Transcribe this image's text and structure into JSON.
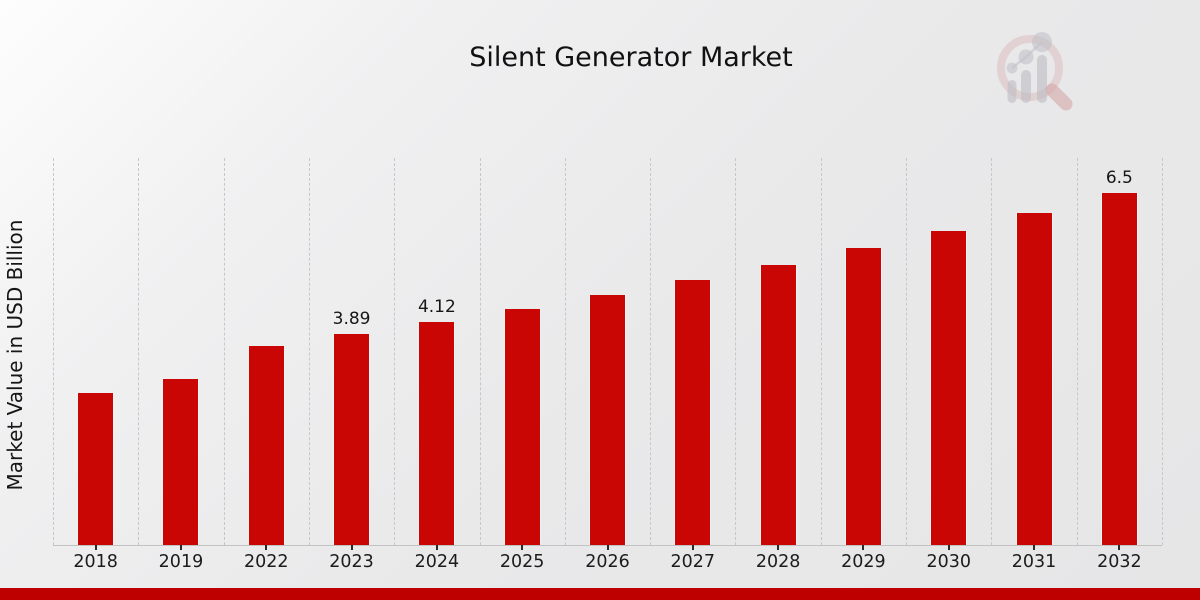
{
  "header": {
    "title": "Silent Generator Market"
  },
  "y_axis": {
    "label": "Market Value in USD Billion"
  },
  "logo": {
    "icon": "magnifier-bar-chart-watermark"
  },
  "footer": {
    "stripe_color": "#bf0000"
  },
  "chart_data": {
    "type": "bar",
    "title": "Silent Generator Market",
    "xlabel": "",
    "ylabel": "Market Value in USD Billion",
    "categories": [
      "2018",
      "2019",
      "2022",
      "2023",
      "2024",
      "2025",
      "2026",
      "2027",
      "2028",
      "2029",
      "2030",
      "2031",
      "2032"
    ],
    "values": [
      2.81,
      3.07,
      3.67,
      3.89,
      4.12,
      4.36,
      4.62,
      4.89,
      5.18,
      5.48,
      5.8,
      6.14,
      6.5
    ],
    "bar_labels": [
      "",
      "",
      "",
      "3.89",
      "4.12",
      "",
      "",
      "",
      "",
      "",
      "",
      "",
      "6.5"
    ],
    "ylim": [
      0,
      7.15
    ],
    "unit": "USD Billion",
    "bar_color": "#c90603",
    "grid": "vertical-dashed",
    "legend": "none"
  }
}
